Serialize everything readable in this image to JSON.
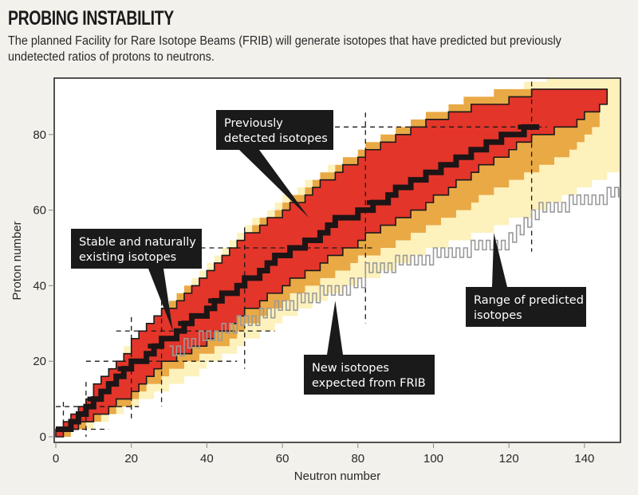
{
  "header": {
    "title": "PROBING INSTABILITY",
    "subtitle": "The planned Facility for Rare Isotope Beams (FRIB) will generate isotopes that have predicted but previously undetected ratios of protons to neutrons."
  },
  "colors": {
    "predicted_outer": "#fdf0b8",
    "frib_new": "#e9a945",
    "detected": "#e3352a",
    "stable": "#1d1516",
    "boundary": "#1a1a1a",
    "drip_line": "#9a9a9a",
    "background": "#f3f1ec"
  },
  "chart_data": {
    "type": "area",
    "title": "PROBING INSTABILITY",
    "xlabel": "Neutron number",
    "ylabel": "Proton number",
    "xlim": [
      0,
      150
    ],
    "ylim": [
      -2,
      96
    ],
    "xticks": [
      0,
      20,
      40,
      60,
      80,
      100,
      120,
      140
    ],
    "yticks": [
      0,
      20,
      40,
      60,
      80
    ],
    "grid": false,
    "magic_numbers": [
      2,
      8,
      20,
      28,
      50,
      82,
      126
    ],
    "series": [
      {
        "name": "Range of predicted isotopes",
        "kind": "band",
        "x": [
          0,
          10,
          20,
          30,
          40,
          50,
          60,
          70,
          80,
          90,
          100,
          110,
          120,
          130,
          140,
          148
        ],
        "z_low": [
          0,
          3,
          8,
          13,
          19,
          25,
          31,
          36,
          41,
          45,
          50,
          53,
          57,
          61,
          66,
          70
        ],
        "z_high": [
          2,
          13,
          26,
          36,
          46,
          56,
          63,
          70,
          76,
          81,
          85,
          88,
          92,
          95,
          96,
          96
        ]
      },
      {
        "name": "New isotopes expected from FRIB",
        "kind": "band",
        "x": [
          0,
          10,
          20,
          28,
          40,
          50,
          60,
          70,
          80,
          90,
          100,
          110,
          120,
          126,
          135,
          143
        ],
        "z_low": [
          0,
          4,
          10,
          16,
          22,
          29,
          36,
          41,
          47,
          51,
          56,
          62,
          67,
          70,
          75,
          82
        ],
        "z_high": [
          2,
          12,
          25,
          34,
          44,
          54,
          62,
          69,
          76,
          81,
          86,
          90,
          92,
          92,
          92,
          92
        ]
      },
      {
        "name": "Previously detected isotopes",
        "kind": "band",
        "x": [
          0,
          10,
          20,
          28,
          40,
          50,
          60,
          70,
          80,
          90,
          100,
          110,
          120,
          126,
          135,
          145
        ],
        "z_low": [
          0,
          5,
          12,
          19,
          26,
          33,
          40,
          46,
          52,
          57,
          63,
          70,
          76,
          80,
          82,
          89
        ],
        "z_high": [
          2,
          13,
          25,
          33,
          43,
          53,
          60,
          67,
          74,
          79,
          84,
          87,
          89,
          91,
          92,
          92
        ]
      },
      {
        "name": "Stable and naturally existing isotopes",
        "kind": "line",
        "x": [
          0,
          8,
          16,
          20,
          28,
          36,
          44,
          50,
          58,
          66,
          74,
          82,
          90,
          100,
          110,
          118,
          126
        ],
        "z": [
          1,
          8,
          15,
          19,
          25,
          31,
          37,
          41,
          47,
          51,
          57,
          60,
          65,
          70,
          75,
          79,
          82
        ]
      },
      {
        "name": "Drip line boundary (gray outline)",
        "kind": "line",
        "x": [
          30,
          40,
          50,
          60,
          70,
          80,
          82,
          90,
          100,
          110,
          120,
          126,
          130,
          140,
          150
        ],
        "z": [
          24,
          28,
          32,
          36,
          39,
          42,
          45,
          47,
          49,
          51,
          53,
          60,
          62,
          64,
          66
        ]
      }
    ],
    "annotations": [
      {
        "text_lines": [
          "Previously",
          "detected isotopes"
        ],
        "points_to": [
          67,
          58
        ]
      },
      {
        "text_lines": [
          "Stable and naturally",
          "existing isotopes"
        ],
        "points_to": [
          31,
          28
        ]
      },
      {
        "text_lines": [
          "New isotopes",
          "expected from FRIB"
        ],
        "points_to": [
          74,
          36
        ]
      },
      {
        "text_lines": [
          "Range of predicted",
          "isotopes"
        ],
        "points_to": [
          116,
          54
        ]
      }
    ]
  }
}
